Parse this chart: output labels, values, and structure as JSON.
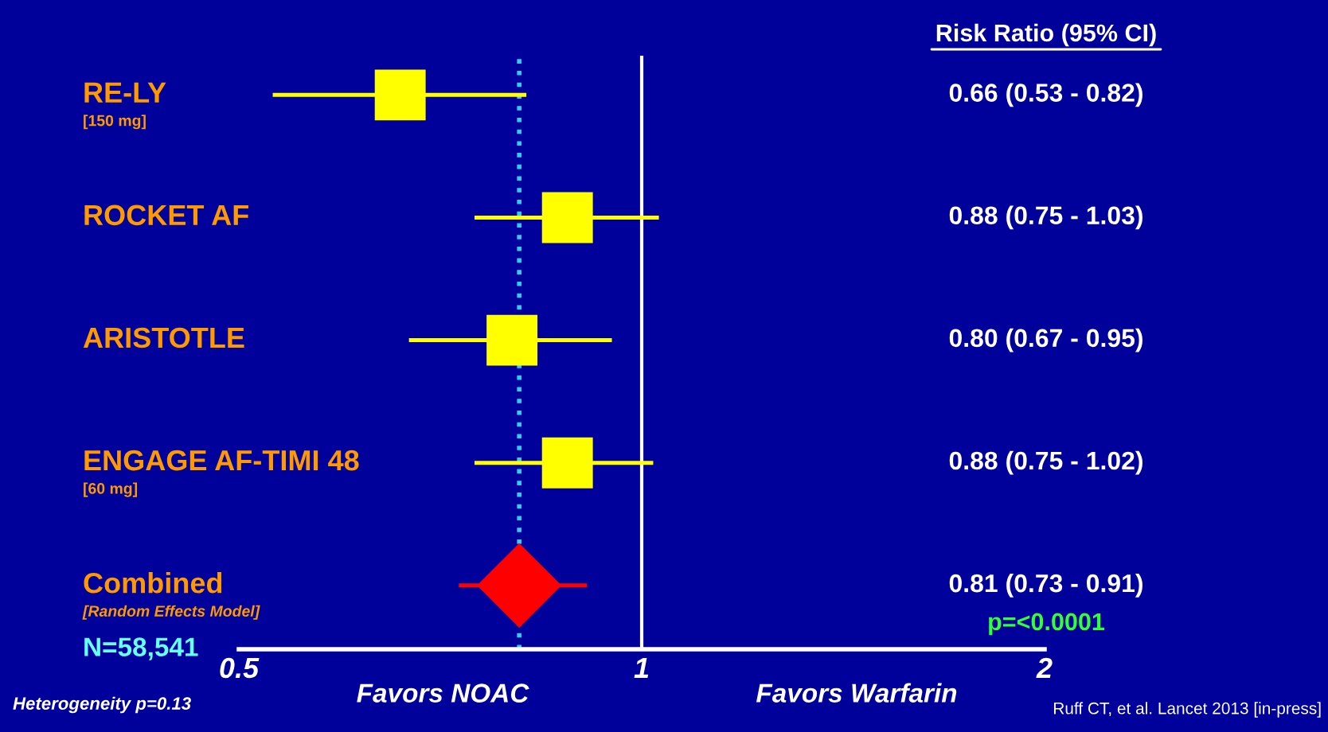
{
  "chart_data": {
    "type": "scatter",
    "orientation": "horizontal",
    "log": "x",
    "categories": [
      "RE-LY\n[150 mg]",
      "ROCKET AF",
      "ARISTOTLE",
      "ENGAGE AF-TIMI 48\n[60 mg]",
      "Combined\n[Random Effects Model]"
    ],
    "series": [
      {
        "color": "#ffff00",
        "marker": "square",
        "values": [
          0.66,
          0.88,
          0.8,
          0.88,
          null
        ],
        "errors": [
          [
            0.53,
            0.82
          ],
          [
            0.75,
            1.03
          ],
          [
            0.67,
            0.95
          ],
          [
            0.75,
            1.02
          ],
          null
        ]
      },
      {
        "color": "#ff0000",
        "marker": "diamond",
        "values": [
          null,
          null,
          null,
          null,
          0.81
        ],
        "errors": [
          null,
          null,
          null,
          null,
          [
            0.73,
            0.91
          ]
        ]
      }
    ],
    "value_labels": [
      "0.66 (0.53 - 0.82)",
      "0.88 (0.75 - 1.03)",
      "0.80 (0.67 - 0.95)",
      "0.88 (0.75 - 1.02)",
      "0.81 (0.73 - 0.91)"
    ],
    "xlim": [
      0.5,
      2
    ],
    "xticks": [
      0.5,
      1,
      2
    ],
    "ref_lines": [
      {
        "axis": "x",
        "value": 1,
        "color": "#ffffff",
        "line_style": "solid"
      },
      {
        "axis": "x",
        "value": 0.81,
        "color": "#33ccff",
        "line_style": "dotted"
      }
    ],
    "annotations": [
      "Risk Ratio (95% CI)",
      "p=<0.0001",
      "N=58,541",
      "Favors NOAC",
      "Favors Warfarin",
      "Heterogeneity p=0.13",
      "Ruff CT, et al. Lancet 2013 [in-press]"
    ],
    "grid": false,
    "legend": false
  }
}
